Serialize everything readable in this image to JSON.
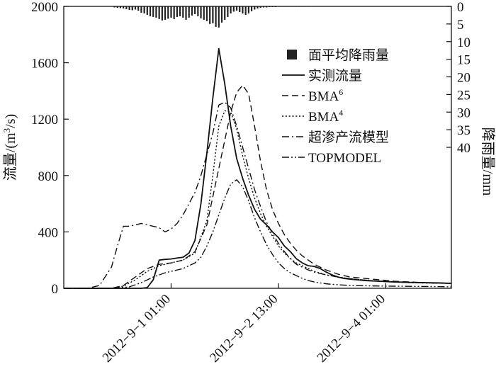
{
  "chart_data": {
    "type": "line",
    "title": "",
    "left_axis": {
      "label": "流量/(m³/s)",
      "label_main": "流量/(m",
      "label_sup": "3",
      "label_tail": "/s)",
      "ylim": [
        0,
        2000
      ],
      "ticks": [
        0,
        400,
        800,
        1200,
        1600,
        2000
      ]
    },
    "right_axis": {
      "label": "降雨量/mm",
      "ylim": [
        0,
        80
      ],
      "inverted": true,
      "ticks": [
        0,
        5,
        10,
        15,
        20,
        25,
        30,
        35,
        40
      ]
    },
    "x_axis": {
      "label": "",
      "ticks": [
        "2012−9−1 01:00",
        "2012−9−2 13:00",
        "2012−9−4 01:00"
      ],
      "tick_hours": [
        20,
        56,
        92
      ],
      "xlim": [
        -16,
        114
      ],
      "unit": "hours since 2012-8-31 05:00"
    },
    "legend": {
      "placement": "top-right",
      "entries": [
        {
          "label": "面平均降雨量",
          "style": "bar"
        },
        {
          "label": "实测流量",
          "style": "solid",
          "sup": ""
        },
        {
          "label": "BMA",
          "sup": "6",
          "style": "dashed"
        },
        {
          "label": "BMA",
          "sup": "4",
          "style": "dotted"
        },
        {
          "label": "超渗产流模型",
          "style": "dashdot",
          "sup": ""
        },
        {
          "label": "TOPMODEL",
          "style": "dashdotdot",
          "sup": ""
        }
      ]
    },
    "rain": {
      "name": "面平均降雨量",
      "start_hour": 1,
      "step": 1,
      "values": [
        0.3,
        0.4,
        0.5,
        0.6,
        0.8,
        1.0,
        1.1,
        0.9,
        1.2,
        1.8,
        2.0,
        2.4,
        2.8,
        3.0,
        3.2,
        3.6,
        4.0,
        3.8,
        3.5,
        3.2,
        3.6,
        3.0,
        2.8,
        3.2,
        3.8,
        3.2,
        2.6,
        2.2,
        2.8,
        3.4,
        3.8,
        4.2,
        5.0,
        4.8,
        5.8,
        6.0,
        4.6,
        3.8,
        3.0,
        2.0,
        1.5,
        1.2,
        1.6,
        2.0,
        2.4,
        2.0,
        1.4,
        0.9,
        0.6,
        0.4,
        0.3,
        0.3,
        0.2,
        0.2,
        0.2,
        0.1,
        0.1,
        0.1,
        0.1,
        0.1,
        0.05,
        0.05,
        0.05,
        0.05,
        0.05,
        0.05
      ]
    },
    "series": [
      {
        "name": "实测流量",
        "style": "solid",
        "x": [
          -16,
          10,
          12,
          14,
          16,
          18,
          20,
          22,
          24,
          26,
          28,
          30,
          32,
          34,
          36,
          38,
          40,
          42,
          44,
          46,
          48,
          50,
          52,
          54,
          56,
          58,
          60,
          62,
          64,
          66,
          68,
          70,
          72,
          74,
          76,
          78,
          80,
          85,
          90,
          95,
          100,
          105,
          110,
          114
        ],
        "y": [
          0,
          0,
          5,
          60,
          200,
          205,
          208,
          215,
          220,
          250,
          340,
          600,
          960,
          1350,
          1700,
          1450,
          1150,
          920,
          780,
          660,
          560,
          490,
          450,
          400,
          360,
          300,
          260,
          210,
          180,
          160,
          155,
          140,
          115,
          95,
          80,
          70,
          65,
          55,
          50,
          45,
          42,
          40,
          38,
          35
        ]
      },
      {
        "name": "BMA6",
        "style": "dashed",
        "x": [
          -16,
          0,
          4,
          8,
          12,
          16,
          20,
          24,
          28,
          32,
          36,
          40,
          42,
          44,
          46,
          48,
          50,
          52,
          54,
          56,
          58,
          60,
          62,
          64,
          66,
          68,
          72,
          76,
          80,
          85,
          90,
          95,
          100,
          105,
          110,
          114
        ],
        "y": [
          0,
          0,
          20,
          80,
          140,
          170,
          180,
          200,
          260,
          450,
          850,
          1250,
          1390,
          1440,
          1380,
          1150,
          900,
          700,
          560,
          460,
          380,
          320,
          270,
          230,
          200,
          170,
          130,
          100,
          80,
          70,
          60,
          50,
          45,
          40,
          38,
          35
        ]
      },
      {
        "name": "BMA4",
        "style": "dotted",
        "x": [
          -16,
          0,
          4,
          8,
          12,
          16,
          20,
          24,
          28,
          32,
          34,
          36,
          38,
          40,
          42,
          44,
          46,
          48,
          50,
          52,
          54,
          56,
          58,
          60,
          62,
          64,
          66,
          68,
          72,
          76,
          80,
          85,
          90,
          95,
          100,
          105,
          110,
          114
        ],
        "y": [
          0,
          0,
          15,
          60,
          120,
          160,
          180,
          200,
          250,
          480,
          800,
          1150,
          1260,
          1250,
          1130,
          940,
          780,
          640,
          530,
          440,
          370,
          300,
          250,
          210,
          180,
          160,
          140,
          120,
          95,
          80,
          68,
          58,
          50,
          45,
          40,
          38,
          36,
          35
        ]
      },
      {
        "name": "超渗产流模型",
        "style": "dashdot",
        "x": [
          -16,
          -8,
          -4,
          0,
          2,
          4,
          6,
          8,
          10,
          12,
          14,
          16,
          18,
          20,
          22,
          24,
          26,
          28,
          30,
          32,
          34,
          36,
          38,
          40,
          42,
          44,
          46,
          48,
          50,
          52,
          54,
          56,
          58,
          60,
          62,
          64,
          66,
          68,
          72,
          76,
          80,
          85,
          90,
          95,
          100,
          105,
          110,
          114
        ],
        "y": [
          0,
          0,
          20,
          150,
          300,
          440,
          440,
          450,
          460,
          450,
          440,
          430,
          400,
          420,
          460,
          520,
          600,
          680,
          800,
          950,
          1100,
          1300,
          1320,
          1280,
          1150,
          1000,
          850,
          700,
          580,
          470,
          390,
          320,
          260,
          210,
          170,
          150,
          130,
          115,
          95,
          80,
          68,
          58,
          50,
          45,
          40,
          38,
          36,
          35
        ]
      },
      {
        "name": "TOPMODEL",
        "style": "dashdotdot",
        "x": [
          -16,
          0,
          6,
          10,
          14,
          18,
          20,
          24,
          28,
          30,
          32,
          34,
          36,
          38,
          40,
          42,
          44,
          46,
          48,
          50,
          52,
          54,
          56,
          58,
          60,
          62,
          64,
          66,
          68,
          70,
          72,
          76,
          80,
          85,
          90,
          95,
          100,
          105,
          110,
          114
        ],
        "y": [
          0,
          0,
          10,
          40,
          80,
          110,
          120,
          140,
          180,
          220,
          300,
          400,
          520,
          640,
          740,
          770,
          720,
          620,
          500,
          400,
          310,
          240,
          180,
          140,
          110,
          90,
          70,
          55,
          45,
          38,
          32,
          25,
          20,
          18,
          16,
          15,
          14,
          13,
          12,
          10
        ]
      }
    ]
  }
}
